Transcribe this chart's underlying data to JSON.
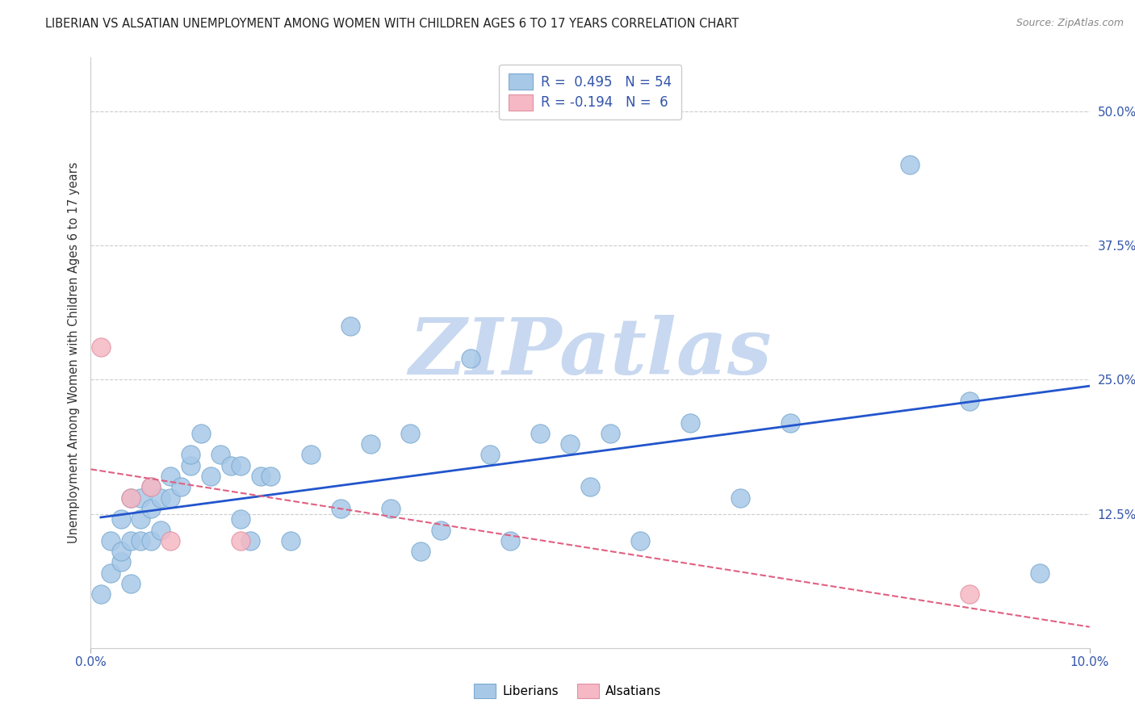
{
  "title": "LIBERIAN VS ALSATIAN UNEMPLOYMENT AMONG WOMEN WITH CHILDREN AGES 6 TO 17 YEARS CORRELATION CHART",
  "source": "Source: ZipAtlas.com",
  "ylabel": "Unemployment Among Women with Children Ages 6 to 17 years",
  "xlim": [
    0.0,
    0.1
  ],
  "ylim": [
    0.0,
    0.55
  ],
  "grid_color": "#cccccc",
  "background_color": "#ffffff",
  "watermark": "ZIPatlas",
  "watermark_color": "#c8d8f0",
  "liberian_color": "#a8c8e8",
  "liberian_edge_color": "#7aaad0",
  "alsatian_color": "#f5b8c4",
  "alsatian_edge_color": "#e090a0",
  "trend_liberian_color": "#2255cc",
  "trend_alsatian_color": "#e06080",
  "legend_liberian_label": "Liberians",
  "legend_alsatian_label": "Alsatians",
  "R_liberian": 0.495,
  "N_liberian": 54,
  "R_alsatian": -0.194,
  "N_alsatian": 6,
  "text_color": "#3355aa",
  "title_color": "#222222",
  "source_color": "#888888",
  "liberian_x": [
    0.001,
    0.002,
    0.002,
    0.003,
    0.003,
    0.003,
    0.004,
    0.004,
    0.004,
    0.005,
    0.005,
    0.005,
    0.006,
    0.006,
    0.006,
    0.007,
    0.007,
    0.008,
    0.008,
    0.009,
    0.01,
    0.01,
    0.011,
    0.012,
    0.013,
    0.014,
    0.015,
    0.015,
    0.016,
    0.017,
    0.018,
    0.02,
    0.022,
    0.025,
    0.026,
    0.028,
    0.03,
    0.032,
    0.033,
    0.035,
    0.038,
    0.04,
    0.042,
    0.045,
    0.048,
    0.05,
    0.052,
    0.055,
    0.06,
    0.065,
    0.07,
    0.082,
    0.088,
    0.095
  ],
  "liberian_y": [
    0.05,
    0.07,
    0.1,
    0.08,
    0.09,
    0.12,
    0.06,
    0.1,
    0.14,
    0.1,
    0.12,
    0.14,
    0.1,
    0.13,
    0.15,
    0.11,
    0.14,
    0.14,
    0.16,
    0.15,
    0.17,
    0.18,
    0.2,
    0.16,
    0.18,
    0.17,
    0.12,
    0.17,
    0.1,
    0.16,
    0.16,
    0.1,
    0.18,
    0.13,
    0.3,
    0.19,
    0.13,
    0.2,
    0.09,
    0.11,
    0.27,
    0.18,
    0.1,
    0.2,
    0.19,
    0.15,
    0.2,
    0.1,
    0.21,
    0.14,
    0.21,
    0.45,
    0.23,
    0.07
  ],
  "alsatian_x": [
    0.001,
    0.004,
    0.006,
    0.008,
    0.015,
    0.088
  ],
  "alsatian_y": [
    0.28,
    0.14,
    0.15,
    0.1,
    0.1,
    0.05
  ]
}
